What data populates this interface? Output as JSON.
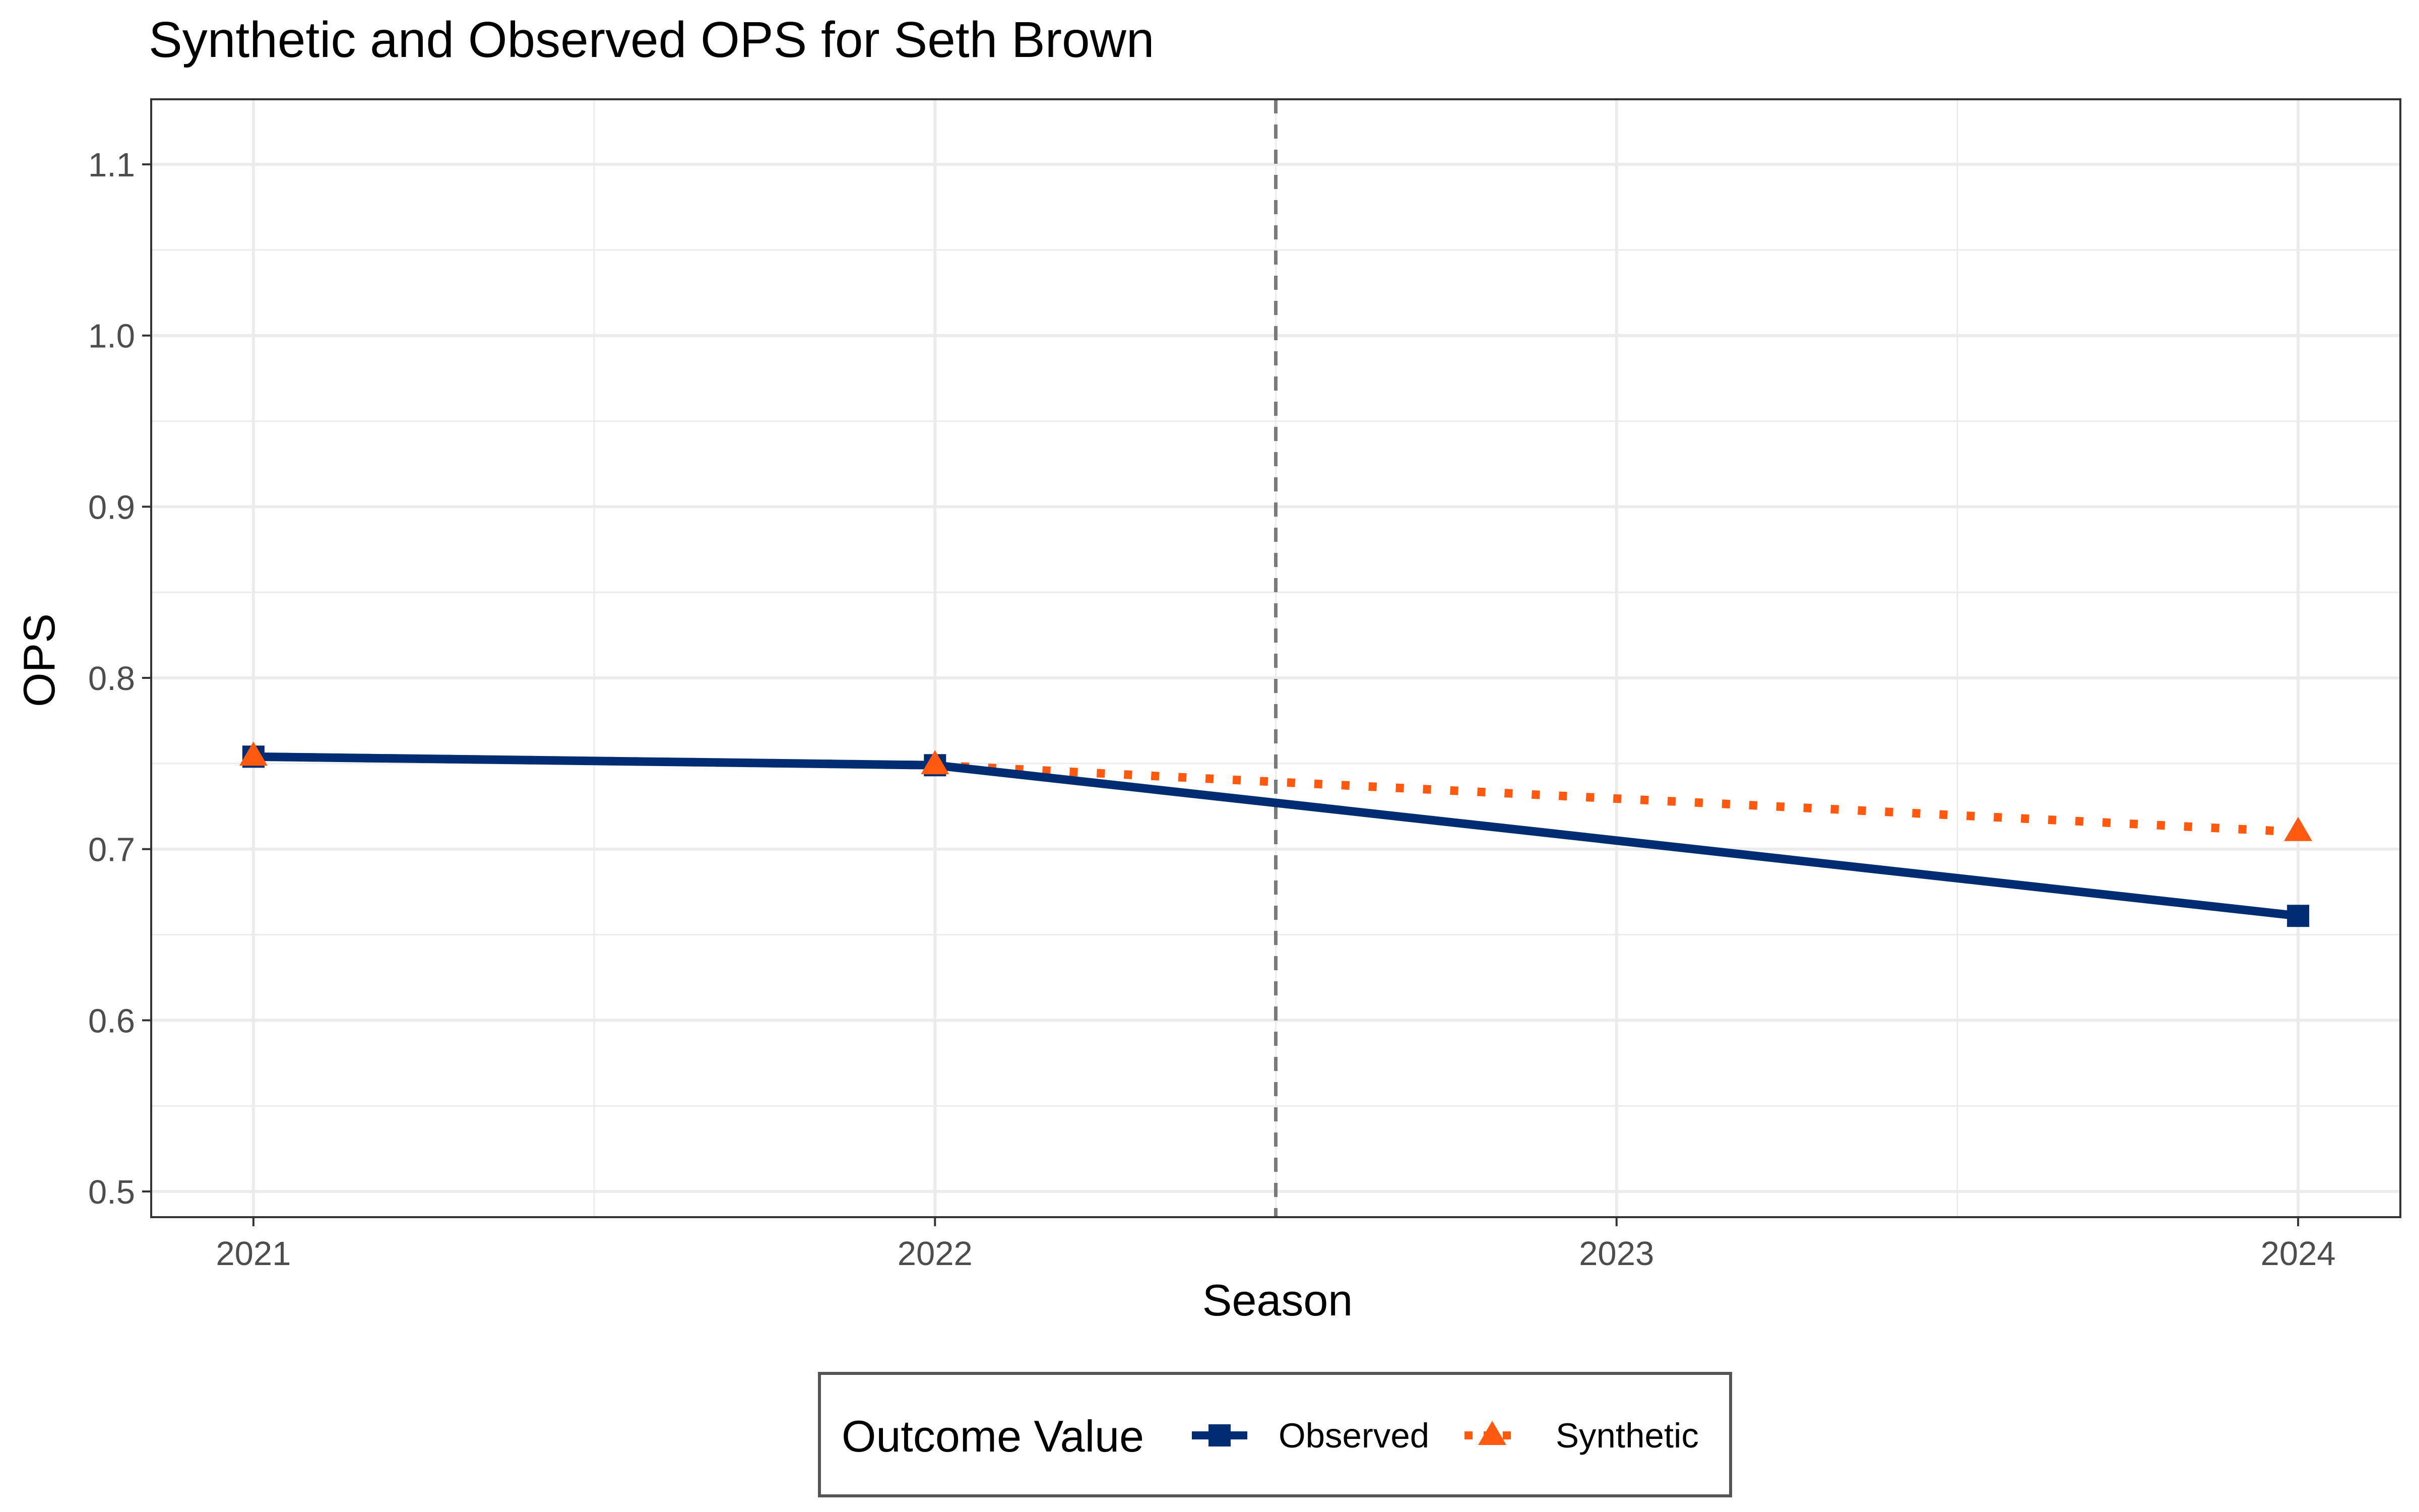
{
  "chart_data": {
    "type": "line",
    "title": "Synthetic and Observed OPS for Seth Brown",
    "xlabel": "Season",
    "ylabel": "OPS",
    "x": [
      2021,
      2022,
      2023,
      2024
    ],
    "x_tick_labels": [
      "2021",
      "2022",
      "2023",
      "2024"
    ],
    "y_tick_labels": [
      "0.5",
      "0.6",
      "0.7",
      "0.8",
      "0.9",
      "1.0",
      "1.1"
    ],
    "y_ticks": [
      0.5,
      0.6,
      0.7,
      0.8,
      0.9,
      1.0,
      1.1
    ],
    "xlim": [
      2020.85,
      2024.15
    ],
    "ylim": [
      0.485,
      1.138
    ],
    "grid": true,
    "treatment_line_x": 2022.5,
    "series": [
      {
        "name": "Observed",
        "x": [
          2021,
          2022,
          2024
        ],
        "values": [
          0.754,
          0.749,
          0.661
        ],
        "color": "#002d72",
        "line_style": "solid",
        "marker": "square"
      },
      {
        "name": "Synthetic",
        "x": [
          2021,
          2022,
          2024
        ],
        "values": [
          0.754,
          0.749,
          0.71
        ],
        "color": "#ff5910",
        "line_style": "dotted",
        "marker": "triangle"
      }
    ],
    "legend": {
      "title": "Outcome Value",
      "position": "bottom",
      "entries": [
        "Observed",
        "Synthetic"
      ]
    }
  }
}
